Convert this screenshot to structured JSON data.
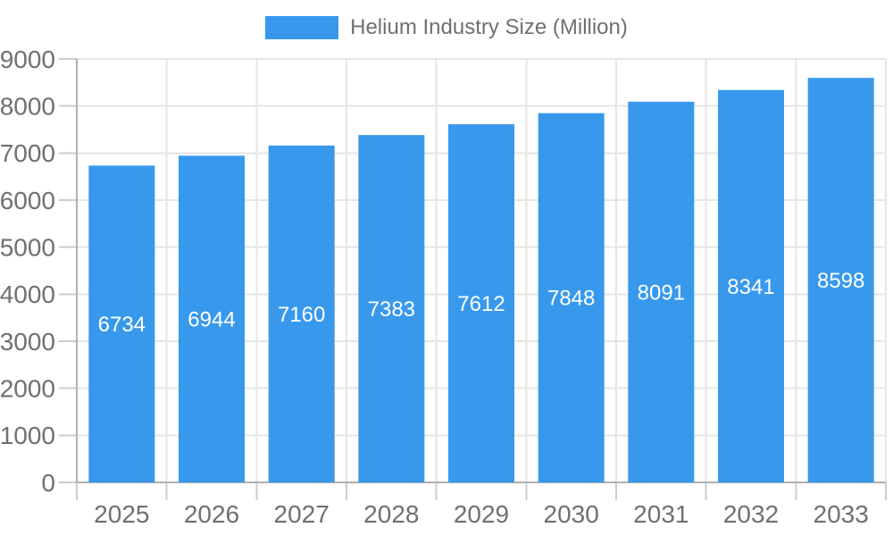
{
  "chart_data": {
    "type": "bar",
    "legend": {
      "label": "Helium Industry Size (Million)",
      "position": "top"
    },
    "categories": [
      "2025",
      "2026",
      "2027",
      "2028",
      "2029",
      "2030",
      "2031",
      "2032",
      "2033"
    ],
    "series": [
      {
        "name": "Helium Industry Size (Million)",
        "values": [
          6734,
          6944,
          7160,
          7383,
          7612,
          7848,
          8091,
          8341,
          8598
        ]
      }
    ],
    "value_labels": true,
    "ylim": [
      0,
      9000
    ],
    "yticks": [
      0,
      1000,
      2000,
      3000,
      4000,
      5000,
      6000,
      7000,
      8000,
      9000
    ],
    "grid": true,
    "legend_position": "top",
    "colors": {
      "bar": "#3899EC",
      "grid": "#E6E6E6",
      "axis": "#B0B0B0",
      "tick": "#CCCCCC",
      "text": "#707070",
      "value_label": "#FFFFFF",
      "background": "#FFFFFF"
    }
  }
}
